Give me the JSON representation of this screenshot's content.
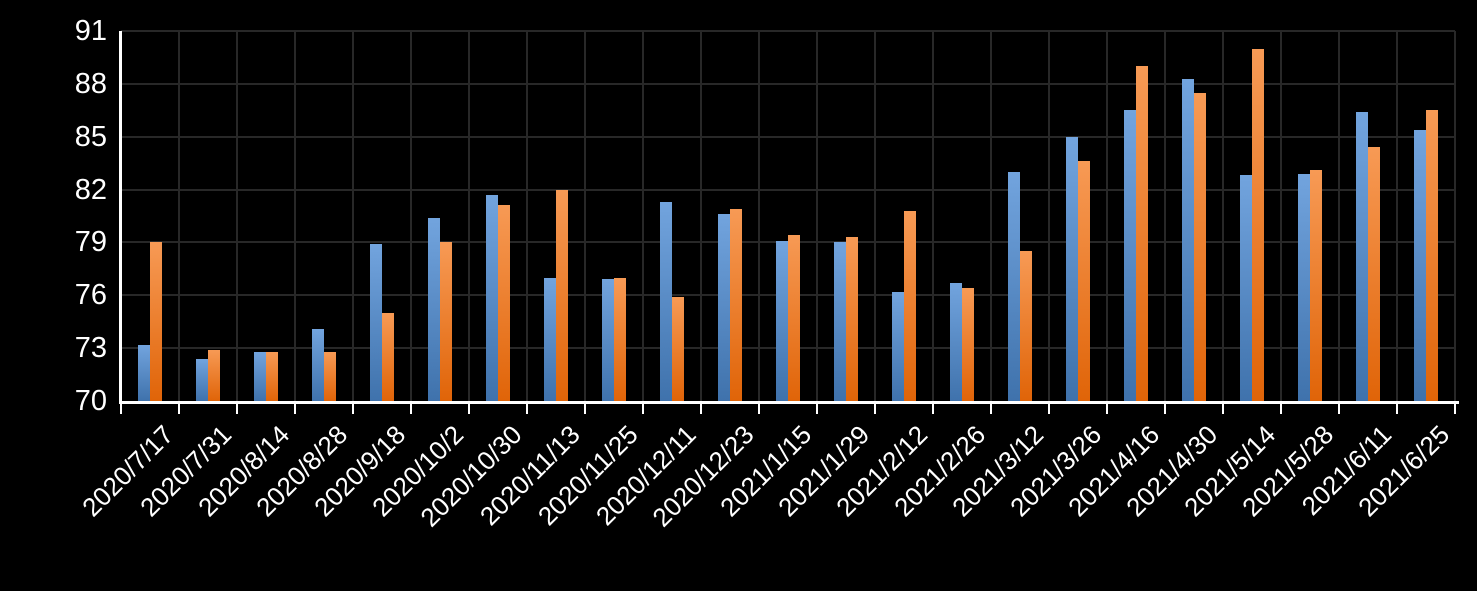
{
  "chart_data": {
    "type": "bar",
    "title": "",
    "xlabel": "",
    "ylabel": "",
    "legend": "none",
    "grid": "both-major",
    "bar_layout": "clustered-pair",
    "ylim": [
      70,
      91
    ],
    "ytick_step": 3,
    "ytick_labels": [
      "70",
      "73",
      "76",
      "79",
      "82",
      "85",
      "88",
      "91"
    ],
    "categories": [
      "2020/7/17",
      "2020/7/31",
      "2020/8/14",
      "2020/8/28",
      "2020/9/18",
      "2020/10/2",
      "2020/10/30",
      "2020/11/13",
      "2020/11/25",
      "2020/12/11",
      "2020/12/23",
      "2021/1/15",
      "2021/1/29",
      "2021/2/12",
      "2021/2/26",
      "2021/3/12",
      "2021/3/26",
      "2021/4/16",
      "2021/4/30",
      "2021/5/14",
      "2021/5/28",
      "2021/6/11",
      "2021/6/25"
    ],
    "series": [
      {
        "name": "blue",
        "values": [
          73.2,
          72.4,
          72.8,
          74.1,
          78.9,
          80.4,
          81.7,
          77.0,
          76.9,
          81.3,
          80.6,
          79.1,
          79.0,
          76.2,
          76.7,
          83.0,
          85.0,
          86.5,
          88.3,
          82.8,
          82.9,
          86.4,
          85.4
        ]
      },
      {
        "name": "orange",
        "values": [
          79.0,
          72.9,
          72.8,
          72.8,
          75.0,
          79.0,
          81.1,
          82.0,
          77.0,
          75.9,
          80.9,
          79.4,
          79.3,
          80.8,
          76.4,
          78.5,
          83.6,
          89.0,
          87.5,
          90.0,
          83.1,
          84.4,
          86.5
        ]
      }
    ]
  },
  "style": {
    "background": "#000000",
    "axis_color": "#FFFFFF",
    "gridline_color": "#282828",
    "text_color": "#FFFFFF",
    "series_colors": [
      {
        "name": "blue",
        "gradient_top": "#72A4DE",
        "gradient_bottom": "#3F72AC"
      },
      {
        "name": "orange",
        "gradient_top": "#F79A55",
        "gradient_bottom": "#E06408"
      }
    ]
  }
}
